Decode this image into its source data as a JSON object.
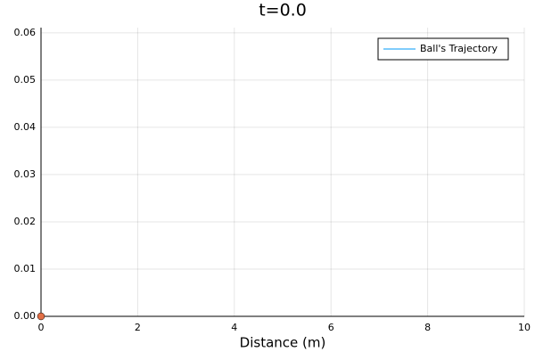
{
  "chart_data": {
    "type": "line",
    "title": "t=0.0",
    "xlabel": "Distance (m)",
    "xlim": [
      0,
      10
    ],
    "xticks": [
      0,
      2,
      4,
      6,
      8,
      10
    ],
    "ylim": [
      0,
      0.0611
    ],
    "yticks": [
      {
        "value": 0,
        "label": "0.00"
      },
      0.01,
      0.02,
      0.03,
      0.04,
      0.05,
      0.06
    ],
    "grid": true,
    "legend": "top-right",
    "series": [
      {
        "name": "Ball's Trajectory",
        "color": "#009af9",
        "x": [
          0
        ],
        "values": [
          0
        ]
      }
    ],
    "ball": {
      "color": "#e26f46",
      "x": [
        0
      ],
      "values": [
        0
      ]
    }
  }
}
